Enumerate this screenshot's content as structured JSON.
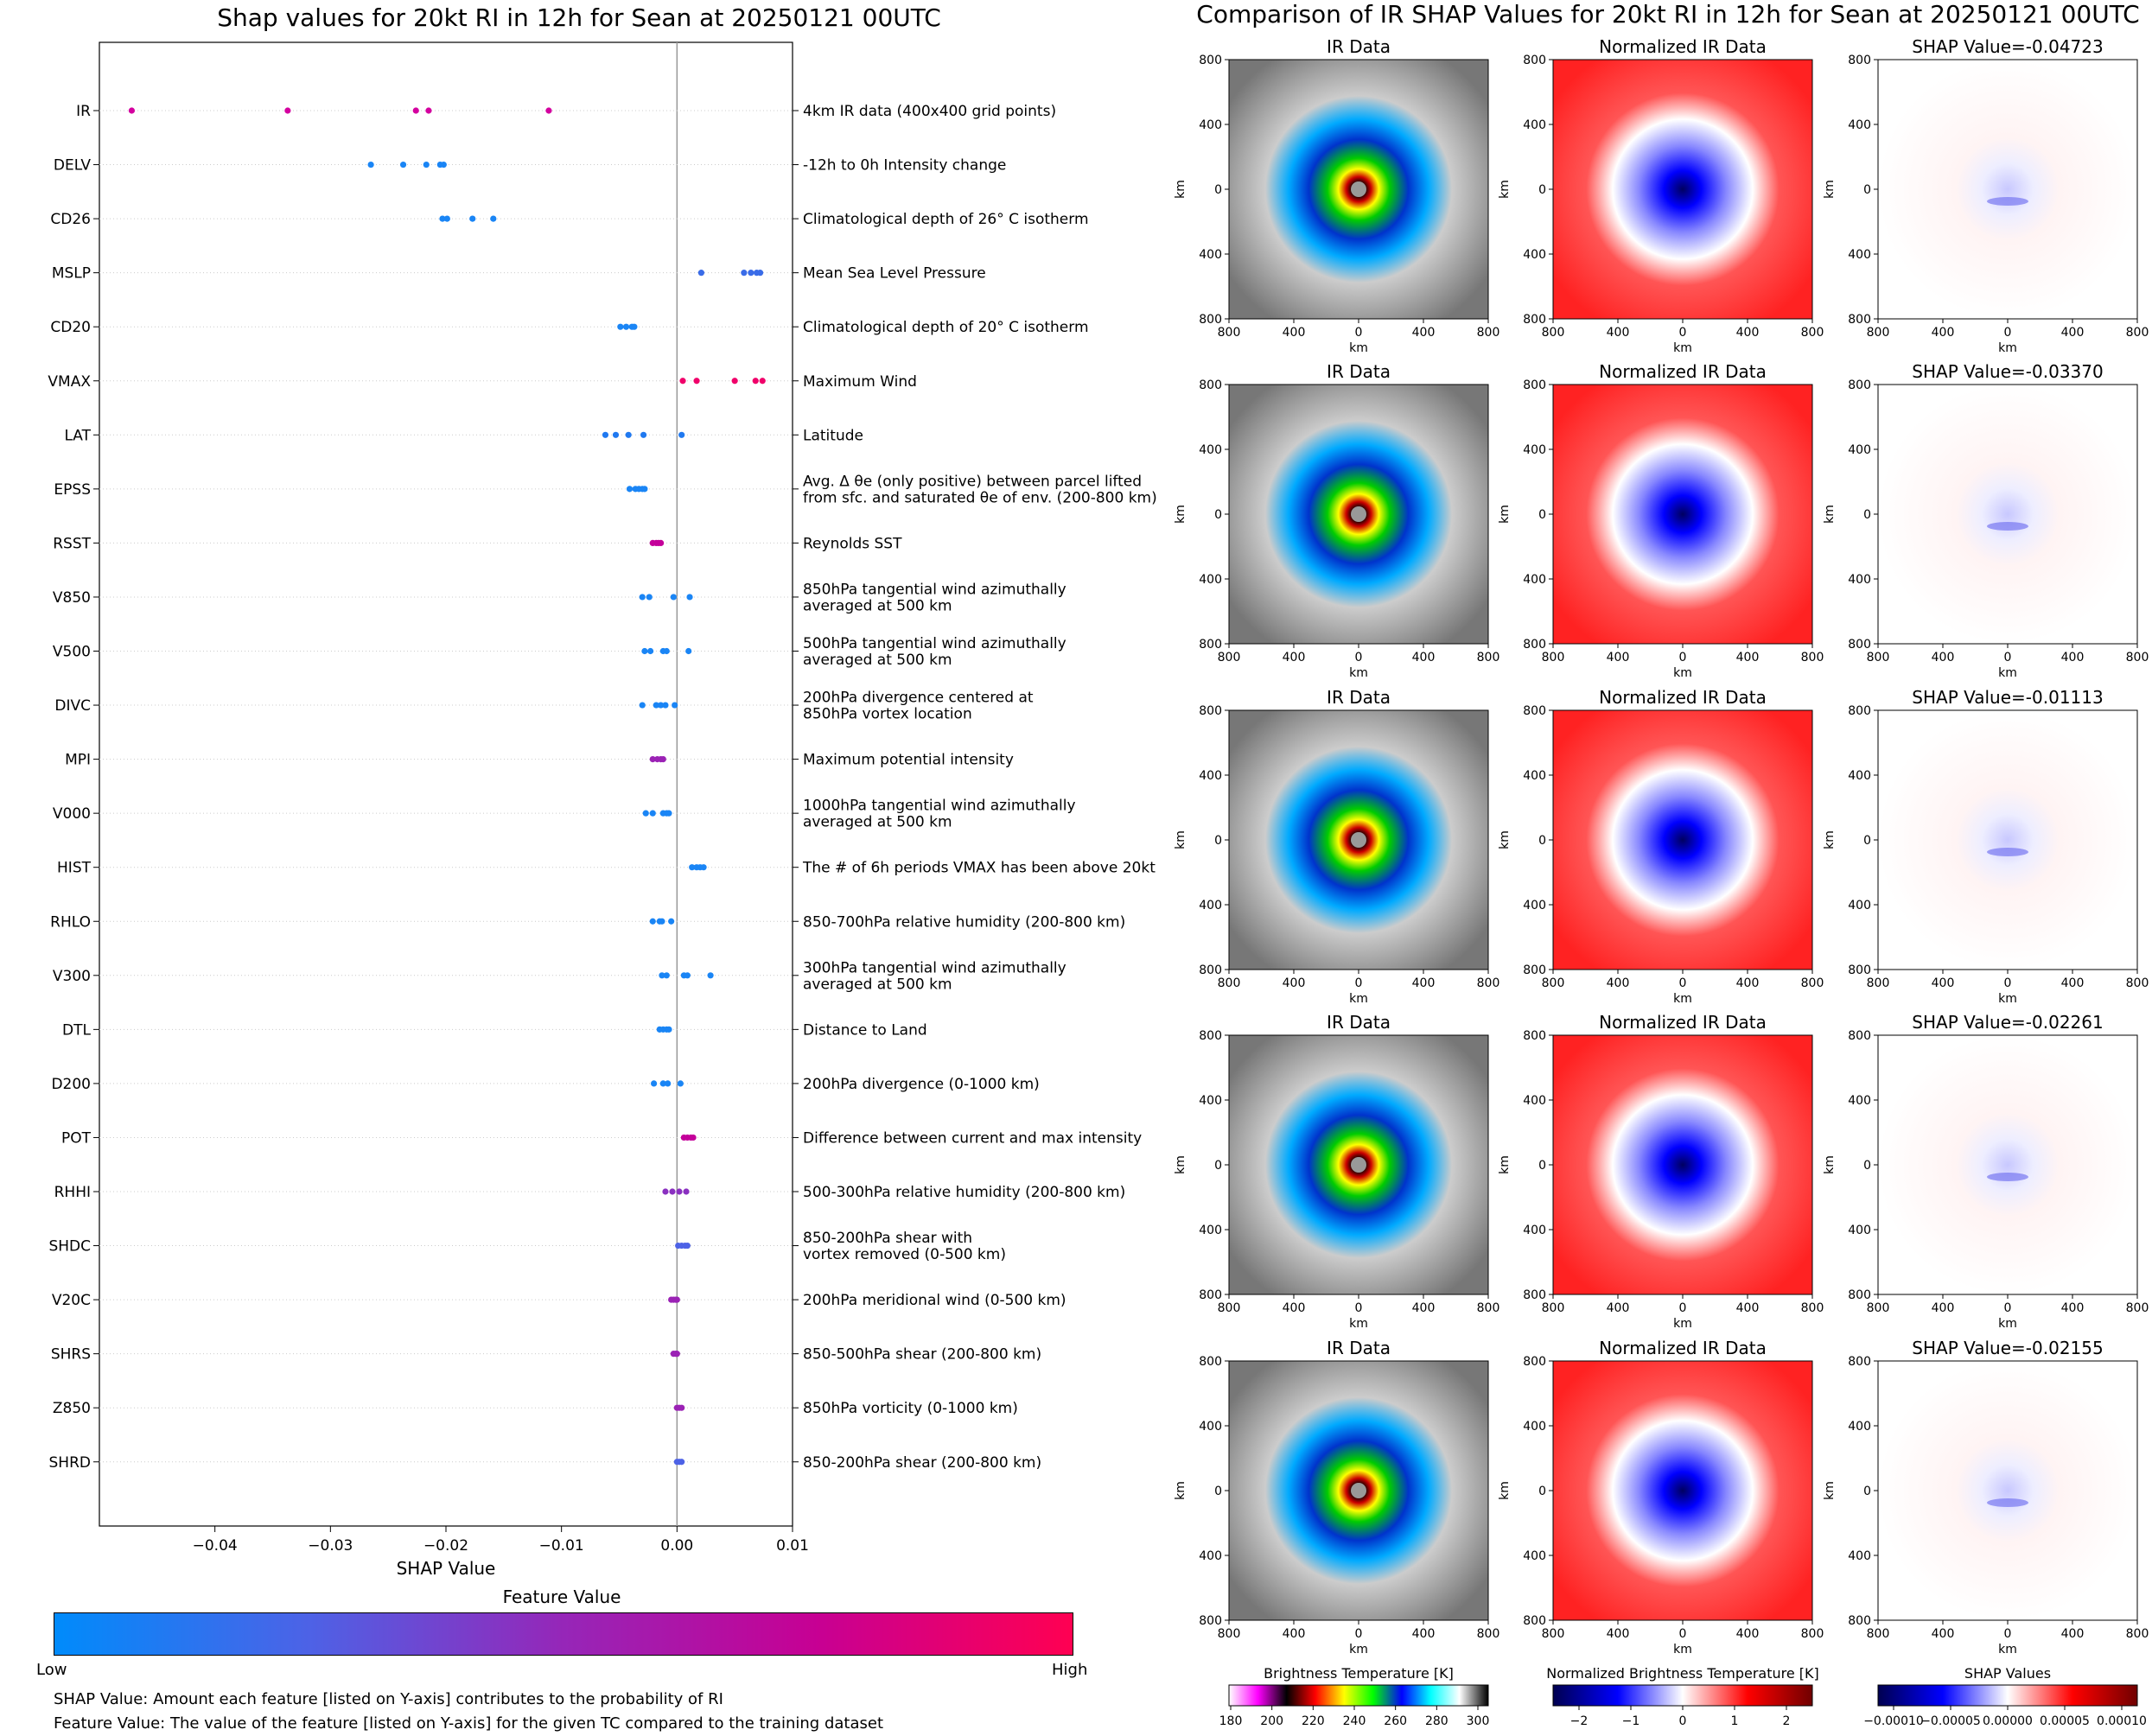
{
  "left_panel": {
    "title": "Shap values for 20kt RI in 12h for Sean at 20250121 00UTC",
    "colorbar": {
      "title": "Feature Value",
      "low": "Low",
      "high": "High",
      "colors": [
        "#008bfb",
        "#4d62e6",
        "#9626b8",
        "#c70093",
        "#ff0052"
      ]
    },
    "notes": [
      "SHAP Value: Amount each feature [listed on Y-axis] contributes to the probability of RI",
      "Feature Value: The value of the feature [listed on Y-axis] for the given TC compared to the training dataset"
    ]
  },
  "chart_data": [
    {
      "type": "scatter",
      "title": "Shap values for 20kt RI in 12h for Sean at 20250121 00UTC",
      "xlabel": "SHAP Value",
      "xlim": [
        -0.05,
        0.01
      ],
      "xticks": [
        "−0.04",
        "−0.03",
        "−0.02",
        "−0.01",
        "0.00",
        "0.01"
      ],
      "xtick_values": [
        -0.04,
        -0.03,
        -0.02,
        -0.01,
        0.0,
        0.01
      ],
      "features": [
        {
          "name": "IR",
          "desc": [
            "4km IR data (400x400 grid points)"
          ],
          "color": "#d4009f",
          "values": [
            -0.0472,
            -0.0337,
            -0.0226,
            -0.0215,
            -0.0111
          ]
        },
        {
          "name": "DELV",
          "desc": [
            "-12h to 0h Intensity change"
          ],
          "color": "#1a85f5",
          "values": [
            -0.0265,
            -0.0237,
            -0.0217,
            -0.0205,
            -0.0202
          ]
        },
        {
          "name": "CD26",
          "desc": [
            "Climatological depth of 26° C isotherm"
          ],
          "color": "#1a85f5",
          "values": [
            -0.0203,
            -0.0199,
            -0.0177,
            -0.0159
          ]
        },
        {
          "name": "MSLP",
          "desc": [
            "Mean Sea Level Pressure"
          ],
          "color": "#3a6ce8",
          "values": [
            0.0021,
            0.0058,
            0.0064,
            0.0069,
            0.0072
          ]
        },
        {
          "name": "CD20",
          "desc": [
            "Climatological depth of 20° C isotherm"
          ],
          "color": "#1a85f5",
          "values": [
            -0.0049,
            -0.0044,
            -0.0039,
            -0.0037
          ]
        },
        {
          "name": "VMAX",
          "desc": [
            "Maximum Wind"
          ],
          "color": "#f0006a",
          "values": [
            0.0005,
            0.0017,
            0.005,
            0.0068,
            0.0074
          ]
        },
        {
          "name": "LAT",
          "desc": [
            "Latitude"
          ],
          "color": "#2079f0",
          "values": [
            -0.0062,
            -0.0053,
            -0.0042,
            -0.0029,
            0.0004
          ]
        },
        {
          "name": "EPSS",
          "desc": [
            "Avg. Δ θe (only positive) between parcel lifted",
            "from sfc. and saturated θe of env. (200-800 km)"
          ],
          "color": "#1a85f5",
          "values": [
            -0.0041,
            -0.0036,
            -0.0033,
            -0.003,
            -0.0028
          ]
        },
        {
          "name": "RSST",
          "desc": [
            "Reynolds SST"
          ],
          "color": "#c4009a",
          "values": [
            -0.0021,
            -0.0018,
            -0.0016,
            -0.0014
          ]
        },
        {
          "name": "V850",
          "desc": [
            "850hPa tangential wind azimuthally",
            "averaged at 500 km"
          ],
          "color": "#1a85f5",
          "values": [
            -0.003,
            -0.0024,
            -0.0003,
            0.0011
          ]
        },
        {
          "name": "V500",
          "desc": [
            "500hPa tangential wind azimuthally",
            "averaged at 500 km"
          ],
          "color": "#1a85f5",
          "values": [
            -0.0028,
            -0.0023,
            -0.0012,
            -0.0009,
            0.001
          ]
        },
        {
          "name": "DIVC",
          "desc": [
            "200hPa divergence centered at",
            "850hPa vortex location"
          ],
          "color": "#1a85f5",
          "values": [
            -0.003,
            -0.0018,
            -0.0014,
            -0.001,
            -0.0002
          ]
        },
        {
          "name": "MPI",
          "desc": [
            "Maximum potential intensity"
          ],
          "color": "#9b22b5",
          "values": [
            -0.0021,
            -0.0017,
            -0.0014,
            -0.0012
          ]
        },
        {
          "name": "V000",
          "desc": [
            "1000hPa tangential wind azimuthally",
            "averaged at 500 km"
          ],
          "color": "#1a85f5",
          "values": [
            -0.0027,
            -0.0021,
            -0.0012,
            -0.0009,
            -0.0007
          ]
        },
        {
          "name": "HIST",
          "desc": [
            "The # of 6h periods VMAX has been above 20kt"
          ],
          "color": "#1a85f5",
          "values": [
            0.0013,
            0.0017,
            0.002,
            0.0023
          ]
        },
        {
          "name": "RHLO",
          "desc": [
            "850-700hPa relative humidity (200-800 km)"
          ],
          "color": "#1a85f5",
          "values": [
            -0.0021,
            -0.0015,
            -0.0013,
            -0.0005
          ]
        },
        {
          "name": "V300",
          "desc": [
            "300hPa tangential wind azimuthally",
            "averaged at 500 km"
          ],
          "color": "#1a85f5",
          "values": [
            -0.0013,
            -0.0009,
            0.0006,
            0.0009,
            0.0029
          ]
        },
        {
          "name": "DTL",
          "desc": [
            "Distance to Land"
          ],
          "color": "#1a85f5",
          "values": [
            -0.0015,
            -0.0012,
            -0.0009,
            -0.0007
          ]
        },
        {
          "name": "D200",
          "desc": [
            "200hPa divergence (0-1000 km)"
          ],
          "color": "#1a85f5",
          "values": [
            -0.002,
            -0.0012,
            -0.0008,
            0.0003
          ]
        },
        {
          "name": "POT",
          "desc": [
            "Difference between current and max intensity"
          ],
          "color": "#c4009a",
          "values": [
            0.0006,
            0.0009,
            0.0012,
            0.0014
          ]
        },
        {
          "name": "RHHI",
          "desc": [
            "500-300hPa relative humidity (200-800 km)"
          ],
          "color": "#8a30c0",
          "values": [
            -0.001,
            -0.0004,
            0.0002,
            0.0008
          ]
        },
        {
          "name": "SHDC",
          "desc": [
            "850-200hPa shear with",
            "vortex removed (0-500 km)"
          ],
          "color": "#4d62e6",
          "values": [
            0.0001,
            0.0004,
            0.0007,
            0.0009
          ]
        },
        {
          "name": "V20C",
          "desc": [
            "200hPa meridional wind (0-500 km)"
          ],
          "color": "#9b22b5",
          "values": [
            -0.0005,
            -0.0003,
            -0.0001,
            0.0
          ]
        },
        {
          "name": "SHRS",
          "desc": [
            "850-500hPa shear (200-800 km)"
          ],
          "color": "#9b22b5",
          "values": [
            -0.0003,
            -0.0001,
            0.0
          ]
        },
        {
          "name": "Z850",
          "desc": [
            "850hPa vorticity (0-1000 km)"
          ],
          "color": "#9b22b5",
          "values": [
            0.0,
            0.0002,
            0.0004
          ]
        },
        {
          "name": "SHRD",
          "desc": [
            "850-200hPa shear (200-800 km)"
          ],
          "color": "#4d62e6",
          "values": [
            0.0,
            0.0002,
            0.0004
          ]
        }
      ]
    },
    {
      "type": "heatmap",
      "title": "Comparison of IR SHAP Values for 20kt RI in 12h for Sean at 20250121 00UTC",
      "rows": [
        {
          "ir_title": "IR Data",
          "norm_title": "Normalized IR Data",
          "shap_title": "SHAP Value=-0.04723"
        },
        {
          "ir_title": "IR Data",
          "norm_title": "Normalized IR Data",
          "shap_title": "SHAP Value=-0.03370"
        },
        {
          "ir_title": "IR Data",
          "norm_title": "Normalized IR Data",
          "shap_title": "SHAP Value=-0.01113"
        },
        {
          "ir_title": "IR Data",
          "norm_title": "Normalized IR Data",
          "shap_title": "SHAP Value=-0.02261"
        },
        {
          "ir_title": "IR Data",
          "norm_title": "Normalized IR Data",
          "shap_title": "SHAP Value=-0.02155"
        }
      ],
      "axis_label": "km",
      "axis_ticks": [
        "800",
        "400",
        "0",
        "400",
        "800"
      ],
      "colorbars": [
        {
          "title": "Brightness Temperature [K]",
          "ticks": [
            "180",
            "200",
            "220",
            "240",
            "260",
            "280",
            "300"
          ],
          "colors": [
            "#ffffff",
            "#ff00ff",
            "#000000",
            "#ff0000",
            "#ffff00",
            "#00ff00",
            "#0000ff",
            "#00ffff",
            "#ffffff",
            "#000000"
          ]
        },
        {
          "title": "Normalized Brightness Temperature [K]",
          "ticks": [
            "−2",
            "−1",
            "0",
            "1",
            "2"
          ],
          "colors": [
            "#000050",
            "#0000ff",
            "#ffffff",
            "#ff0000",
            "#700000"
          ]
        },
        {
          "title": "SHAP Values",
          "ticks": [
            "−0.00010",
            "−0.00005",
            "0.00000",
            "0.00005",
            "0.00010"
          ],
          "colors": [
            "#000050",
            "#0000ff",
            "#ffffff",
            "#ff0000",
            "#700000"
          ]
        }
      ]
    }
  ]
}
